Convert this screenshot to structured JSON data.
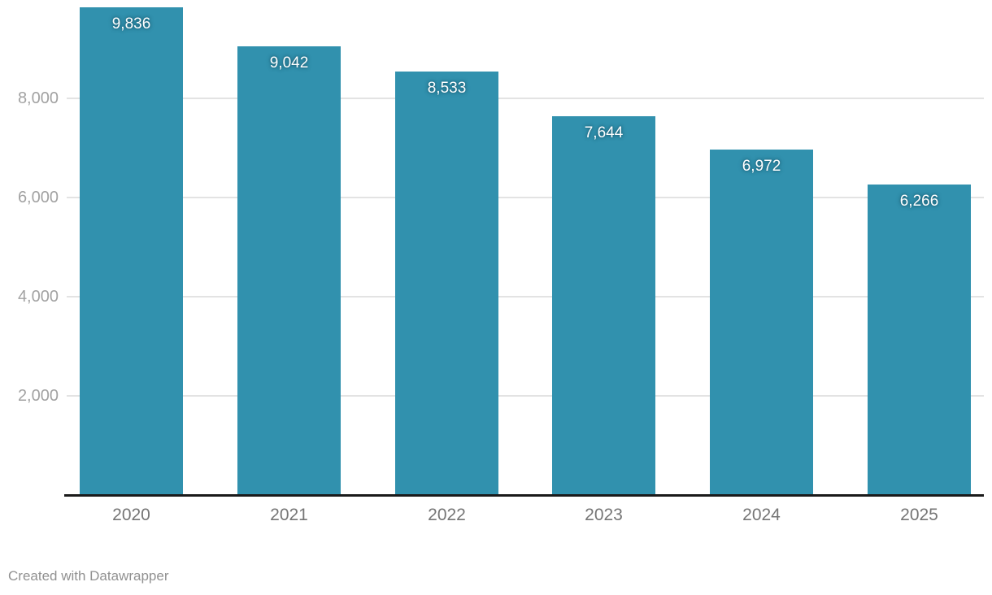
{
  "chart_data": {
    "type": "bar",
    "categories": [
      "2020",
      "2021",
      "2022",
      "2023",
      "2024",
      "2025"
    ],
    "values": [
      9836,
      9042,
      8533,
      7644,
      6972,
      6266
    ],
    "value_labels": [
      "9,836",
      "9,042",
      "8,533",
      "7,644",
      "6,972",
      "6,266"
    ],
    "yticks": [
      2000,
      4000,
      6000,
      8000
    ],
    "ytick_labels": [
      "2,000",
      "4,000",
      "6,000",
      "8,000"
    ],
    "ylim": [
      0,
      9984
    ],
    "grid": true,
    "legend": "none",
    "title": "",
    "xlabel": "",
    "ylabel": "",
    "bar_color": "#3191ae"
  },
  "colors": {
    "bar": "#3191ae",
    "gridline": "#e3e3e3",
    "baseline": "#1a1a1a",
    "ytick_text": "#a2a2a2",
    "xtick_text": "#757575",
    "value_text": "#ffffff",
    "footer_text": "#919191",
    "background": "#ffffff"
  },
  "footer": {
    "attribution": "Created with Datawrapper"
  }
}
